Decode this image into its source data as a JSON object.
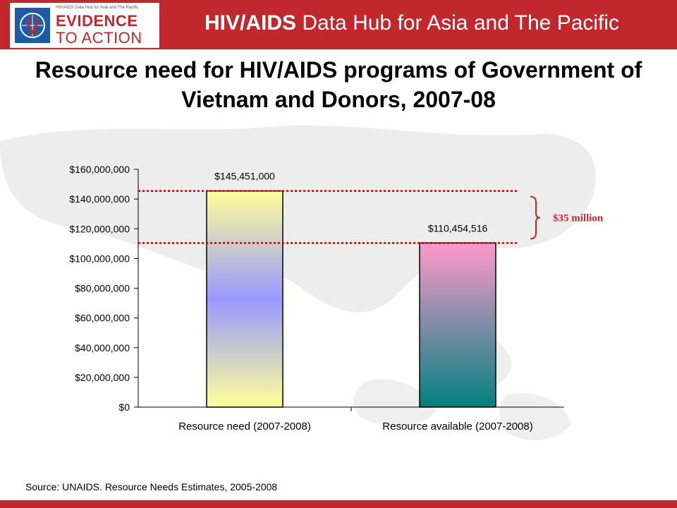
{
  "header": {
    "logo_small_text": "HIV/AIDS Data Hub for Asia and The Pacific",
    "logo_line1": "EVIDENCE",
    "logo_line2": "TO ACTION",
    "title_bold": "HIV/AIDS",
    "title_rest": " Data Hub for Asia and The Pacific"
  },
  "chart_data": {
    "type": "bar",
    "title": "Resource need for HIV/AIDS programs of Government of Vietnam and Donors, 2007-08",
    "categories": [
      "Resource need (2007-2008)",
      "Resource available (2007-2008)"
    ],
    "values": [
      145451000,
      110454516
    ],
    "value_labels": [
      "$145,451,000",
      "$110,454,516"
    ],
    "ylim": [
      0,
      160000000
    ],
    "yticks": [
      0,
      20000000,
      40000000,
      60000000,
      80000000,
      100000000,
      120000000,
      140000000,
      160000000
    ],
    "ytick_labels": [
      "$0",
      "$20,000,000",
      "$40,000,000",
      "$60,000,000",
      "$80,000,000",
      "$100,000,000",
      "$120,000,000",
      "$140,000,000",
      "$160,000,000"
    ],
    "grid": false,
    "annotation": "$35 million",
    "colors": {
      "bar1": [
        "#ffff99",
        "#9999ff",
        "#ffff99"
      ],
      "bar2": [
        "#ff99cc",
        "#008080"
      ],
      "reference_line": "#cc0000",
      "annotation": "#c0282d"
    }
  },
  "source": "Source: UNAIDS. Resource Needs Estimates, 2005-2008"
}
